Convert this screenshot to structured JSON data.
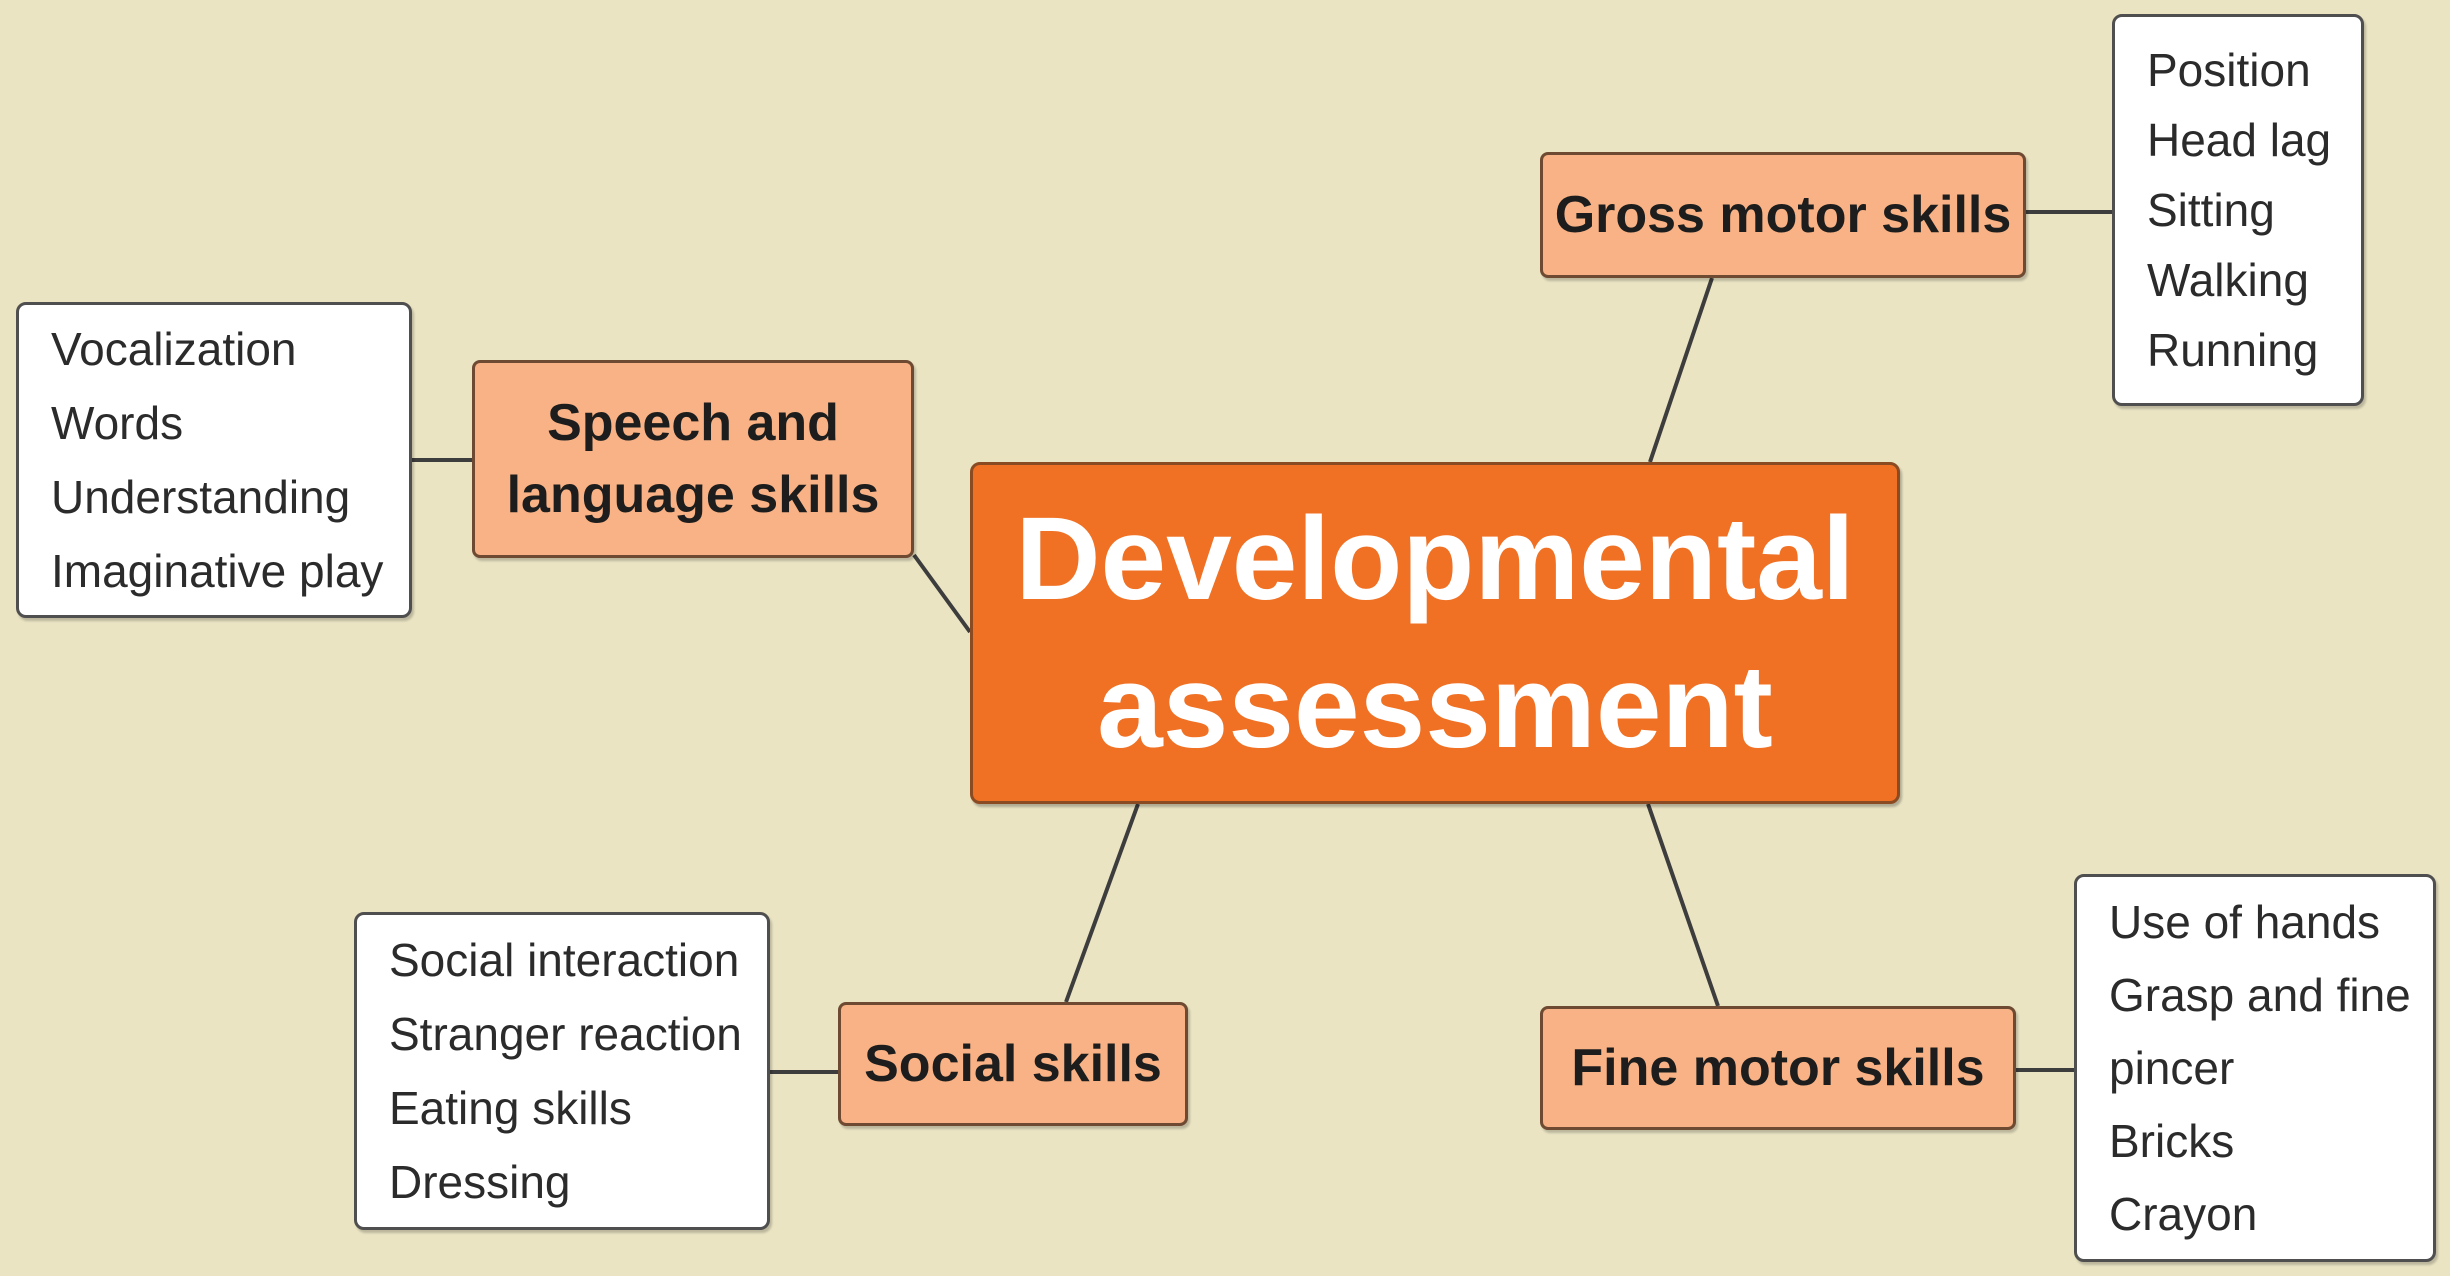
{
  "central": {
    "line1": "Developmental",
    "line2": "assessment"
  },
  "gross_motor": {
    "label": "Gross motor skills",
    "items": [
      "Position",
      "Head lag",
      "Sitting",
      "Walking",
      "Running"
    ]
  },
  "speech_language": {
    "label_line1": "Speech and",
    "label_line2": "language skills",
    "items": [
      "Vocalization",
      "Words",
      "Understanding",
      "Imaginative play"
    ]
  },
  "social": {
    "label": "Social skills",
    "items": [
      "Social interaction",
      "Stranger reaction",
      "Eating skills",
      "Dressing"
    ]
  },
  "fine_motor": {
    "label": "Fine motor skills",
    "items": [
      "Use of hands",
      "Grasp and fine",
      "pincer",
      "Bricks",
      "Crayon"
    ]
  },
  "colors": {
    "background": "#eae4c3",
    "central_fill": "#f07024",
    "skill_fill": "#f8b285",
    "item_fill": "#ffffff"
  }
}
